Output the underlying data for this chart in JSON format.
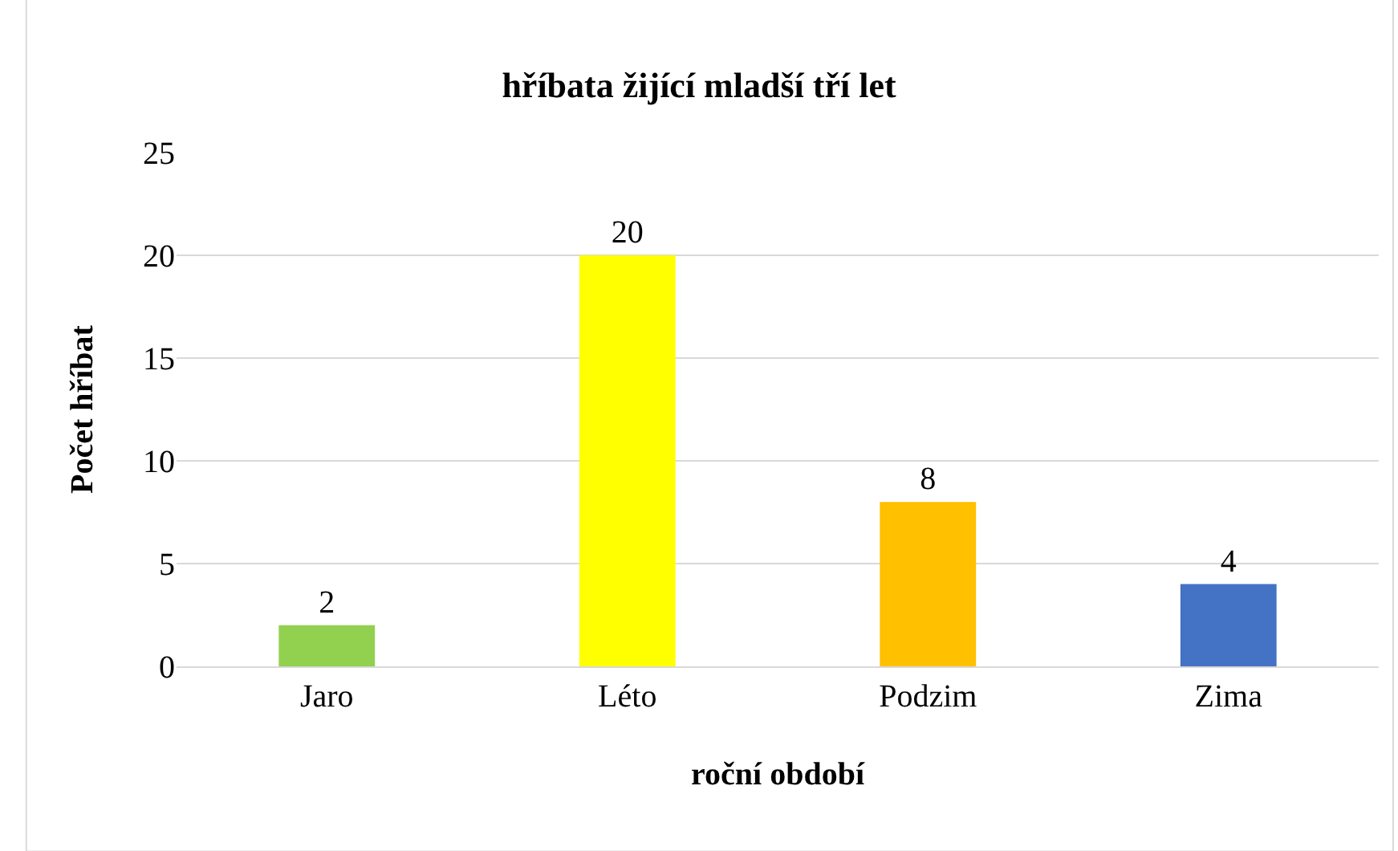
{
  "chart_data": {
    "type": "bar",
    "title": "hříbata žijící mladší tří let",
    "xlabel": "roční období",
    "ylabel": "Počet hříbat",
    "categories": [
      "Jaro",
      "Léto",
      "Podzim",
      "Zima"
    ],
    "values": [
      2,
      20,
      8,
      4
    ],
    "colors": [
      "#92d050",
      "#ffff00",
      "#ffc000",
      "#4472c4"
    ],
    "ylim": [
      0,
      25
    ],
    "yticks": [
      0,
      5,
      10,
      15,
      20,
      25
    ],
    "grid": "y",
    "data_labels": true,
    "legend": false
  }
}
